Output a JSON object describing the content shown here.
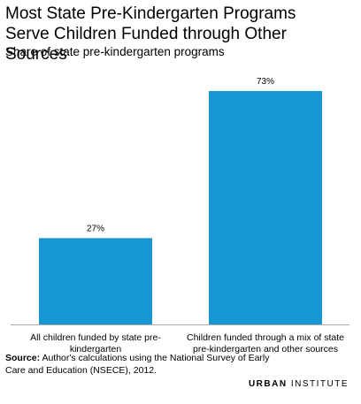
{
  "chart_data": {
    "type": "bar",
    "title": "Most State Pre-Kindergarten Programs Serve Children Funded through Other Sources",
    "subtitle": "Share of state pre-kindergarten programs",
    "categories": [
      "All children funded by state pre-kindergarten",
      "Children funded through a mix of state pre-kindergarten and other sources"
    ],
    "values": [
      27,
      73
    ],
    "value_labels": [
      "27%",
      "73%"
    ],
    "color": "#1696d2",
    "source_label": "Source:",
    "source": "Author's calculations using the National Survey of Early Care and Education (NSECE), 2012.",
    "logo_bold": "URBAN",
    "logo_light": "INSTITUTE"
  }
}
